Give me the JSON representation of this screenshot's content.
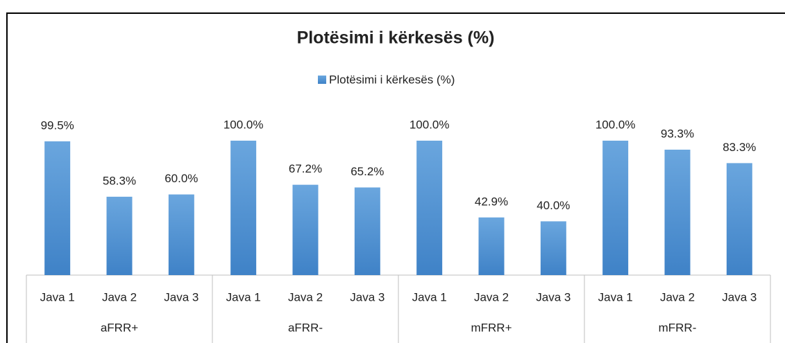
{
  "chart_data": {
    "type": "bar",
    "title": "Plotësimi i kërkesës (%)",
    "categories": [
      "Java 1",
      "Java 2",
      "Java 3",
      "Java 1",
      "Java 2",
      "Java 3",
      "Java 1",
      "Java 2",
      "Java 3",
      "Java 1",
      "Java 2",
      "Java 3"
    ],
    "groups": [
      "aFRR+",
      "aFRR-",
      "mFRR+",
      "mFRR-"
    ],
    "series": [
      {
        "name": "Plotësimi i kërkesës (%)",
        "color": "#5b9bd5",
        "values": [
          99.5,
          58.3,
          60.0,
          100.0,
          67.2,
          65.2,
          100.0,
          42.9,
          40.0,
          100.0,
          93.3,
          83.3
        ],
        "value_labels": [
          "99.5%",
          "58.3%",
          "60.0%",
          "100.0%",
          "67.2%",
          "65.2%",
          "100.0%",
          "42.9%",
          "40.0%",
          "100.0%",
          "93.3%",
          "83.3%"
        ]
      }
    ],
    "ylim": [
      0,
      100
    ],
    "legend": "top"
  }
}
